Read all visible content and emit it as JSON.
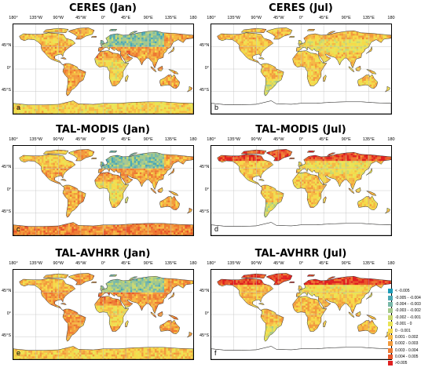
{
  "longitude_ticks": [
    "180°",
    "135°W",
    "90°W",
    "45°W",
    "0°",
    "45°E",
    "90°E",
    "135°E",
    "180"
  ],
  "latitude_ticks": [
    "45°N",
    "0°",
    "45°S"
  ],
  "panels": [
    {
      "title": "CERES (Jan)",
      "label": "a",
      "month": "Jan",
      "scheme": "jan1"
    },
    {
      "title": "CERES (Jul)",
      "label": "b",
      "month": "Jul",
      "scheme": "jul1"
    },
    {
      "title": "TAL-MODIS (Jan)",
      "label": "c",
      "month": "Jan",
      "scheme": "jan2"
    },
    {
      "title": "TAL-MODIS (Jul)",
      "label": "d",
      "month": "Jul",
      "scheme": "jul2"
    },
    {
      "title": "TAL-AVHRR (Jan)",
      "label": "e",
      "month": "Jan",
      "scheme": "jan3"
    },
    {
      "title": "TAL-AVHRR (Jul)",
      "label": "f",
      "month": "Jul",
      "scheme": "jul3"
    }
  ],
  "legend": [
    {
      "label": "< -0.005",
      "color": "#1b9bb8"
    },
    {
      "label": "-0.005 - -0.004",
      "color": "#4aa8b4"
    },
    {
      "label": "-0.004 - -0.003",
      "color": "#78b8a8"
    },
    {
      "label": "-0.003 - -0.002",
      "color": "#a4c98c"
    },
    {
      "label": "-0.002 - -0.001",
      "color": "#c9d86e"
    },
    {
      "label": "-0.001 - 0",
      "color": "#e9e456"
    },
    {
      "label": "0 - 0.001",
      "color": "#f6d94a"
    },
    {
      "label": "0.001 - 0.002",
      "color": "#f5b845"
    },
    {
      "label": "0.002 - 0.003",
      "color": "#f29a3c"
    },
    {
      "label": "0.003 - 0.004",
      "color": "#ee7a32"
    },
    {
      "label": "0.004 - 0.005",
      "color": "#e8552a"
    },
    {
      "label": ">0.005",
      "color": "#e02020"
    }
  ]
}
